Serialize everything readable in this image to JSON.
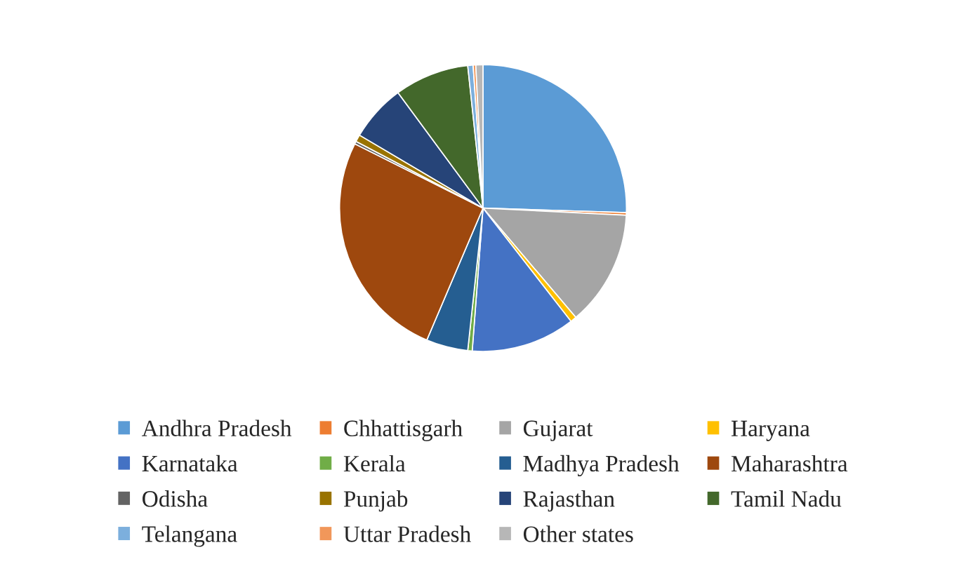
{
  "chart_data": {
    "type": "pie",
    "categories": [
      "Andhra Pradesh",
      "Chhattisgarh",
      "Gujarat",
      "Haryana",
      "Karnataka",
      "Kerala",
      "Madhya Pradesh",
      "Maharashtra",
      "Odisha",
      "Punjab",
      "Rajasthan",
      "Tamil Nadu",
      "Telangana",
      "Uttar Pradesh",
      "Other states"
    ],
    "values": [
      25.5,
      0.3,
      13,
      0.7,
      11.7,
      0.5,
      4.7,
      26,
      0.3,
      0.8,
      6.4,
      8.4,
      0.6,
      0.3,
      0.8
    ],
    "colors": [
      "#5b9bd5",
      "#ed7d31",
      "#a5a5a5",
      "#ffc000",
      "#4472c4",
      "#70ad47",
      "#255e91",
      "#9e480e",
      "#636363",
      "#997300",
      "#264478",
      "#43682b",
      "#7cafdd",
      "#f1975a",
      "#b7b7b7"
    ],
    "legend": "bottom"
  }
}
